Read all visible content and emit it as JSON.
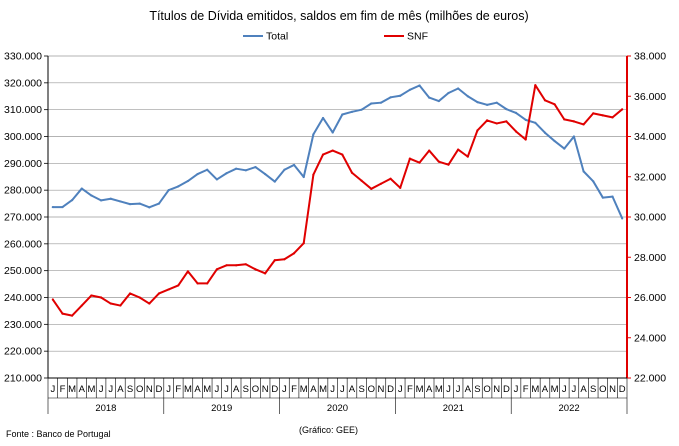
{
  "chart_data": {
    "type": "line",
    "title": "Títulos de Dívida emitidos, saldos em fim de mês  (milhões de euros)",
    "legend": {
      "position": "top",
      "items": [
        {
          "name": "Total",
          "color": "#4F81BD"
        },
        {
          "name": "SNF",
          "color": "#E00000"
        }
      ]
    },
    "x_months": [
      "J",
      "F",
      "M",
      "A",
      "M",
      "J",
      "J",
      "A",
      "S",
      "O",
      "N",
      "D",
      "J",
      "F",
      "M",
      "A",
      "M",
      "J",
      "J",
      "A",
      "S",
      "O",
      "N",
      "D",
      "J",
      "F",
      "M",
      "A",
      "M",
      "J",
      "J",
      "A",
      "S",
      "O",
      "N",
      "D",
      "J",
      "F",
      "M",
      "A",
      "M",
      "J",
      "J",
      "A",
      "S",
      "O",
      "N",
      "D",
      "J",
      "F",
      "M",
      "A",
      "M",
      "J",
      "J",
      "A",
      "S",
      "O",
      "N",
      "D"
    ],
    "x_years": [
      "2018",
      "2019",
      "2020",
      "2021",
      "2022"
    ],
    "y_left": {
      "min": 210000,
      "max": 330000,
      "step": 10000,
      "tick_labels": [
        "210.000",
        "220.000",
        "230.000",
        "240.000",
        "250.000",
        "260.000",
        "270.000",
        "280.000",
        "290.000",
        "300.000",
        "310.000",
        "320.000",
        "330.000"
      ]
    },
    "y_right": {
      "min": 22000,
      "max": 38000,
      "step": 2000,
      "tick_labels": [
        "22.000",
        "24.000",
        "26.000",
        "28.000",
        "30.000",
        "32.000",
        "34.000",
        "36.000",
        "38.000"
      ]
    },
    "series": [
      {
        "name": "Total",
        "axis": "left",
        "color": "#4F81BD",
        "values": [
          273700,
          273700,
          276300,
          280600,
          278000,
          276200,
          276800,
          275800,
          274800,
          275000,
          273600,
          275000,
          280000,
          281400,
          283400,
          286000,
          287600,
          284000,
          286300,
          288000,
          287400,
          288600,
          286000,
          283200,
          287600,
          289400,
          284900,
          300800,
          306900,
          301500,
          308200,
          309200,
          310000,
          312300,
          312600,
          314600,
          315200,
          317400,
          319000,
          314500,
          313200,
          316200,
          317900,
          315000,
          312800,
          311800,
          312600,
          310200,
          308800,
          306200,
          305100,
          301400,
          298300,
          295500,
          300000,
          287000,
          283300,
          277200,
          277600,
          269500
        ]
      },
      {
        "name": "SNF",
        "axis": "right",
        "color": "#E00000",
        "values": [
          25900,
          25200,
          25100,
          25600,
          26100,
          26000,
          25700,
          25600,
          26200,
          26000,
          25700,
          26200,
          26400,
          26600,
          27300,
          26700,
          26700,
          27400,
          27600,
          27600,
          27650,
          27400,
          27200,
          27850,
          27900,
          28200,
          28700,
          32100,
          33100,
          33300,
          33100,
          32200,
          31800,
          31400,
          31650,
          31900,
          31450,
          32900,
          32700,
          33300,
          32750,
          32600,
          33350,
          33000,
          34300,
          34800,
          34650,
          34750,
          34250,
          33850,
          36550,
          35800,
          35600,
          34850,
          34750,
          34600,
          35150,
          35050,
          34950,
          35350
        ]
      }
    ],
    "source": "Fonte : Banco de Portugal",
    "credit": "(Gráfico:  GEE)"
  }
}
